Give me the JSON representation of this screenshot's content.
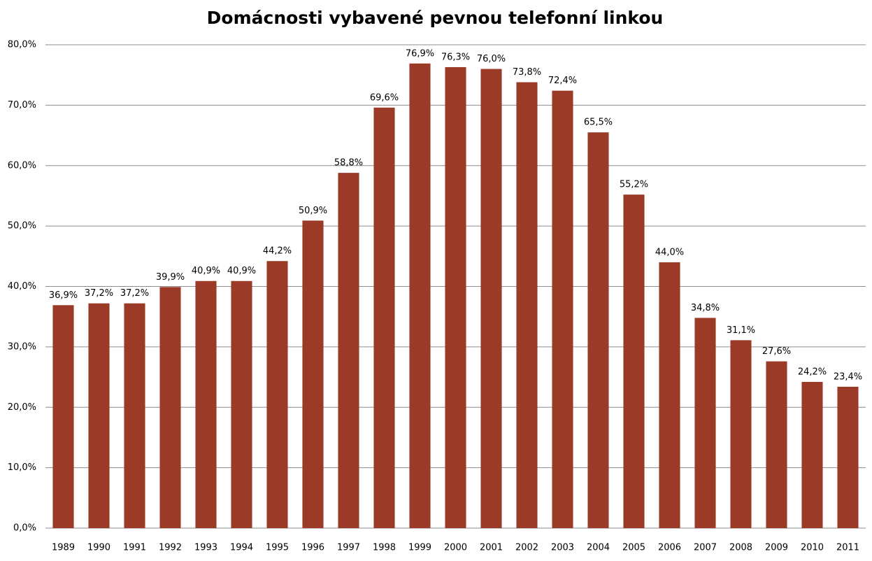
{
  "chart_data": {
    "type": "bar",
    "title": "Domácnosti vybavené pevnou telefonní linkou",
    "categories": [
      "1989",
      "1990",
      "1991",
      "1992",
      "1993",
      "1994",
      "1995",
      "1996",
      "1997",
      "1998",
      "1999",
      "2000",
      "2001",
      "2002",
      "2003",
      "2004",
      "2005",
      "2006",
      "2007",
      "2008",
      "2009",
      "2010",
      "2011"
    ],
    "values": [
      36.9,
      37.2,
      37.2,
      39.9,
      40.9,
      40.9,
      44.2,
      50.9,
      58.8,
      69.6,
      76.9,
      76.3,
      76.0,
      73.8,
      72.4,
      65.5,
      55.2,
      44.0,
      34.8,
      31.1,
      27.6,
      24.2,
      23.4
    ],
    "value_labels": [
      "36,9%",
      "37,2%",
      "37,2%",
      "39,9%",
      "40,9%",
      "40,9%",
      "44,2%",
      "50,9%",
      "58,8%",
      "69,6%",
      "76,9%",
      "76,3%",
      "76,0%",
      "73,8%",
      "72,4%",
      "65,5%",
      "55,2%",
      "44,0%",
      "34,8%",
      "31,1%",
      "27,6%",
      "24,2%",
      "23,4%"
    ],
    "color": "#9b3a27",
    "ylim": [
      0,
      80
    ],
    "yticks": [
      {
        "value": 0,
        "label": "0,0%"
      },
      {
        "value": 10,
        "label": "10,0%"
      },
      {
        "value": 20,
        "label": "20,0%"
      },
      {
        "value": 30,
        "label": "30,0%"
      },
      {
        "value": 40,
        "label": "40,0%"
      },
      {
        "value": 50,
        "label": "50,0%"
      },
      {
        "value": 60,
        "label": "60,0%"
      },
      {
        "value": 70,
        "label": "70,0%"
      },
      {
        "value": 80,
        "label": "80,0%"
      }
    ],
    "grid": true
  }
}
